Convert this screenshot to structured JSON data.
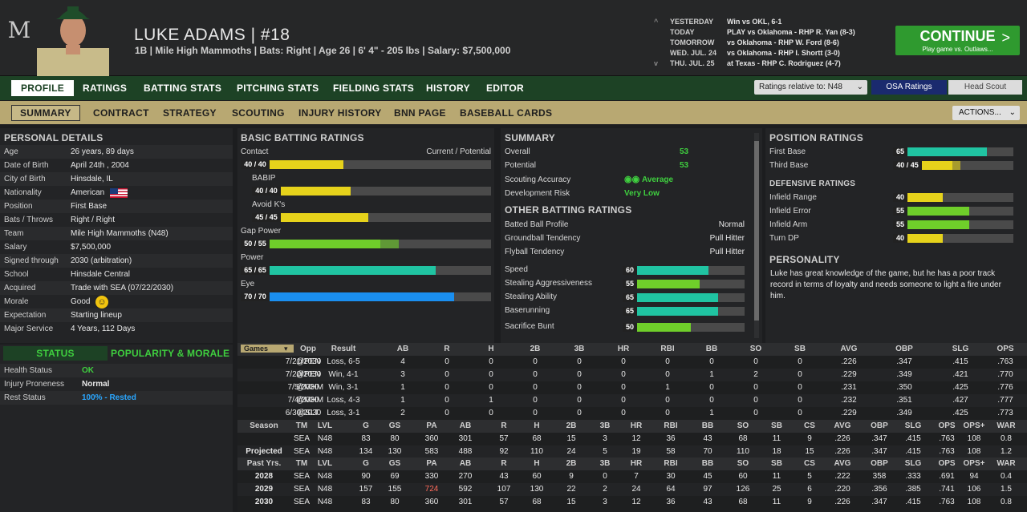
{
  "player": {
    "name": "LUKE ADAMS",
    "sep": "|",
    "number": "#18",
    "info": "1B | Mile High Mammoths  |  Bats: Right  |  Age 26  |  6' 4\" - 205 lbs  |  Salary: $7,500,000"
  },
  "schedule": [
    {
      "arrow": "^",
      "day": "YESTERDAY",
      "game": "Win vs OKL, 6-1"
    },
    {
      "arrow": "",
      "day": "TODAY",
      "game": "PLAY vs Oklahoma - RHP R. Yan (8-3)"
    },
    {
      "arrow": "",
      "day": "TOMORROW",
      "game": "vs Oklahoma - RHP W. Ford (8-6)"
    },
    {
      "arrow": "",
      "day": "WED. JUL. 24",
      "game": "vs Oklahoma - RHP I. Shortt (3-0)"
    },
    {
      "arrow": "v",
      "day": "THU. JUL. 25",
      "game": "at Texas - RHP C. Rodriguez (4-7)"
    }
  ],
  "continue": {
    "label": "CONTINUE",
    "sub": "Play game vs. Outlaws...",
    "chevron": ">"
  },
  "nav1": [
    "PROFILE",
    "RATINGS",
    "BATTING STATS",
    "PITCHING STATS",
    "FIELDING STATS",
    "HISTORY",
    "EDITOR"
  ],
  "ratings_select": "Ratings relative to: N48",
  "osa": "OSA Ratings",
  "head_scout": "Head Scout",
  "nav2": [
    "SUMMARY",
    "CONTRACT",
    "STRATEGY",
    "SCOUTING",
    "INJURY HISTORY",
    "BNN PAGE",
    "BASEBALL CARDS"
  ],
  "actions": "ACTIONS...",
  "personal": {
    "title": "PERSONAL DETAILS",
    "rows": [
      [
        "Age",
        "26 years, 89 days"
      ],
      [
        "Date of Birth",
        "April 24th , 2004"
      ],
      [
        "City of Birth",
        "Hinsdale, IL"
      ],
      [
        "Nationality",
        "American"
      ],
      [
        "Position",
        "First Base"
      ],
      [
        "Bats / Throws",
        "Right / Right"
      ],
      [
        "Team",
        "Mile High Mammoths (N48)"
      ],
      [
        "Salary",
        "$7,500,000"
      ],
      [
        "Signed through",
        "2030 (arbitration)"
      ],
      [
        "School",
        "Hinsdale Central"
      ],
      [
        "Acquired",
        "Trade with SEA (07/22/2030)"
      ],
      [
        "Morale",
        "Good"
      ],
      [
        "Expectation",
        "Starting lineup"
      ],
      [
        "Major Service",
        "4 Years, 112 Days"
      ]
    ]
  },
  "status": {
    "tab1": "STATUS",
    "tab2": "POPULARITY & MORALE",
    "rows": [
      [
        "Health Status",
        "OK"
      ],
      [
        "Injury Proneness",
        "Normal"
      ],
      [
        "Rest Status",
        "100% - Rested"
      ]
    ]
  },
  "batting": {
    "title": "BASIC BATTING RATINGS",
    "cur_pot": "Current / Potential",
    "items": [
      {
        "name": "Contact",
        "cur": 40,
        "pot": 40,
        "label": "40 / 40",
        "color": "#e6d21b"
      },
      {
        "name": "BABIP",
        "cur": 40,
        "pot": 40,
        "label": "40 / 40",
        "color": "#e6d21b"
      },
      {
        "name": "Avoid K's",
        "cur": 45,
        "pot": 45,
        "label": "45 / 45",
        "color": "#e6d21b"
      },
      {
        "name": "Gap Power",
        "cur": 50,
        "pot": 55,
        "label": "50 / 55",
        "color": "#6fce2a"
      },
      {
        "name": "Power",
        "cur": 65,
        "pot": 65,
        "label": "65 / 65",
        "color": "#20c4a2"
      },
      {
        "name": "Eye",
        "cur": 70,
        "pot": 70,
        "label": "70 / 70",
        "color": "#1a8ff0"
      }
    ]
  },
  "summary": {
    "title": "SUMMARY",
    "overall_l": "Overall",
    "overall": "53",
    "potential_l": "Potential",
    "potential": "53",
    "acc_l": "Scouting Accuracy",
    "acc": "Average",
    "risk_l": "Development Risk",
    "risk": "Very Low"
  },
  "other": {
    "title": "OTHER BATTING RATINGS",
    "text": [
      [
        "Batted Ball Profile",
        "Normal"
      ],
      [
        "Groundball Tendency",
        "Pull Hitter"
      ],
      [
        "Flyball Tendency",
        "Pull Hitter"
      ]
    ],
    "bars": [
      {
        "name": "Speed",
        "v": 60,
        "label": "60",
        "color": "#20c4a2"
      },
      {
        "name": "Stealing Aggressiveness",
        "v": 55,
        "label": "55",
        "color": "#6fce2a"
      },
      {
        "name": "Stealing Ability",
        "v": 65,
        "label": "65",
        "color": "#20c4a2"
      },
      {
        "name": "Baserunning",
        "v": 65,
        "label": "65",
        "color": "#20c4a2"
      },
      {
        "name": "Sacrifice Bunt",
        "v": 50,
        "label": "50",
        "color": "#6fce2a"
      }
    ]
  },
  "position": {
    "title": "POSITION RATINGS",
    "items": [
      {
        "name": "First Base",
        "cur": 65,
        "pot": 65,
        "label": "65",
        "color": "#20c4a2"
      },
      {
        "name": "Third Base",
        "cur": 40,
        "pot": 45,
        "label": "40 / 45",
        "color": "#e6d21b"
      }
    ],
    "def_title": "DEFENSIVE RATINGS",
    "def": [
      {
        "name": "Infield Range",
        "v": 40,
        "label": "40",
        "color": "#e6d21b"
      },
      {
        "name": "Infield Error",
        "v": 55,
        "label": "55",
        "color": "#6fce2a"
      },
      {
        "name": "Infield Arm",
        "v": 55,
        "label": "55",
        "color": "#6fce2a"
      },
      {
        "name": "Turn DP",
        "v": 40,
        "label": "40",
        "color": "#e6d21b"
      }
    ]
  },
  "personality": {
    "title": "PERSONALITY",
    "text": "Luke has great knowledge of the game, but he has a poor track record in terms of loyalty and needs someone to light a fire under him."
  },
  "games": {
    "select": "Games",
    "headers": [
      "Opp",
      "Result",
      "AB",
      "R",
      "H",
      "2B",
      "3B",
      "HR",
      "RBI",
      "BB",
      "SO",
      "SB",
      "AVG",
      "OBP",
      "SLG",
      "OPS"
    ],
    "rows": [
      [
        "7/21/2030",
        "@PEN",
        "Loss, 6-5",
        "4",
        "0",
        "0",
        "0",
        "0",
        "0",
        "0",
        "0",
        "0",
        "0",
        ".226",
        ".347",
        ".415",
        ".763"
      ],
      [
        "7/20/2030",
        "@PEN",
        "Win, 4-1",
        "3",
        "0",
        "0",
        "0",
        "0",
        "0",
        "0",
        "1",
        "2",
        "0",
        ".229",
        ".349",
        ".421",
        ".770"
      ],
      [
        "7/5/2030",
        "@MHM",
        "Win, 3-1",
        "1",
        "0",
        "0",
        "0",
        "0",
        "0",
        "1",
        "0",
        "0",
        "0",
        ".231",
        ".350",
        ".425",
        ".776"
      ],
      [
        "7/4/2030",
        "@MHM",
        "Loss, 4-3",
        "1",
        "0",
        "1",
        "0",
        "0",
        "0",
        "0",
        "0",
        "0",
        "0",
        ".232",
        ".351",
        ".427",
        ".777"
      ],
      [
        "6/30/2030",
        "@SLT",
        "Loss, 3-1",
        "2",
        "0",
        "0",
        "0",
        "0",
        "0",
        "0",
        "1",
        "0",
        "0",
        ".229",
        ".349",
        ".425",
        ".773"
      ]
    ]
  },
  "season": {
    "headers": [
      "Season",
      "TM",
      "LVL",
      "G",
      "GS",
      "PA",
      "AB",
      "R",
      "H",
      "2B",
      "3B",
      "HR",
      "RBI",
      "BB",
      "SO",
      "SB",
      "CS",
      "AVG",
      "OBP",
      "SLG",
      "OPS",
      "OPS+",
      "WAR"
    ],
    "rows": [
      [
        "",
        "SEA",
        "N48",
        "83",
        "80",
        "360",
        "301",
        "57",
        "68",
        "15",
        "3",
        "12",
        "36",
        "43",
        "68",
        "11",
        "9",
        ".226",
        ".347",
        ".415",
        ".763",
        "108",
        "0.8"
      ],
      [
        "Projected",
        "SEA",
        "N48",
        "134",
        "130",
        "583",
        "488",
        "92",
        "110",
        "24",
        "5",
        "19",
        "58",
        "70",
        "110",
        "18",
        "15",
        ".226",
        ".347",
        ".415",
        ".763",
        "108",
        "1.2"
      ]
    ]
  },
  "past": {
    "headers": [
      "Past Yrs.",
      "TM",
      "LVL",
      "G",
      "GS",
      "PA",
      "AB",
      "R",
      "H",
      "2B",
      "3B",
      "HR",
      "RBI",
      "BB",
      "SO",
      "SB",
      "CS",
      "AVG",
      "OBP",
      "SLG",
      "OPS",
      "OPS+",
      "WAR"
    ],
    "rows": [
      [
        "2028",
        "SEA",
        "N48",
        "90",
        "69",
        "330",
        "270",
        "43",
        "60",
        "9",
        "0",
        "7",
        "30",
        "45",
        "60",
        "11",
        "5",
        ".222",
        "358",
        ".333",
        ".691",
        "94",
        "0.4"
      ],
      [
        "2029",
        "SEA",
        "N48",
        "157",
        "155",
        "724",
        "592",
        "107",
        "130",
        "22",
        "2",
        "24",
        "64",
        "97",
        "126",
        "25",
        "6",
        ".220",
        ".356",
        ".385",
        ".741",
        "106",
        "1.5"
      ],
      [
        "2030",
        "SEA",
        "N48",
        "83",
        "80",
        "360",
        "301",
        "57",
        "68",
        "15",
        "3",
        "12",
        "36",
        "43",
        "68",
        "11",
        "9",
        ".226",
        ".347",
        ".415",
        ".763",
        "108",
        "0.8"
      ]
    ]
  },
  "colors": {
    "green": "#3fcf3f",
    "highlight": "#ff6a5a",
    "link": "#2aa7ff"
  }
}
